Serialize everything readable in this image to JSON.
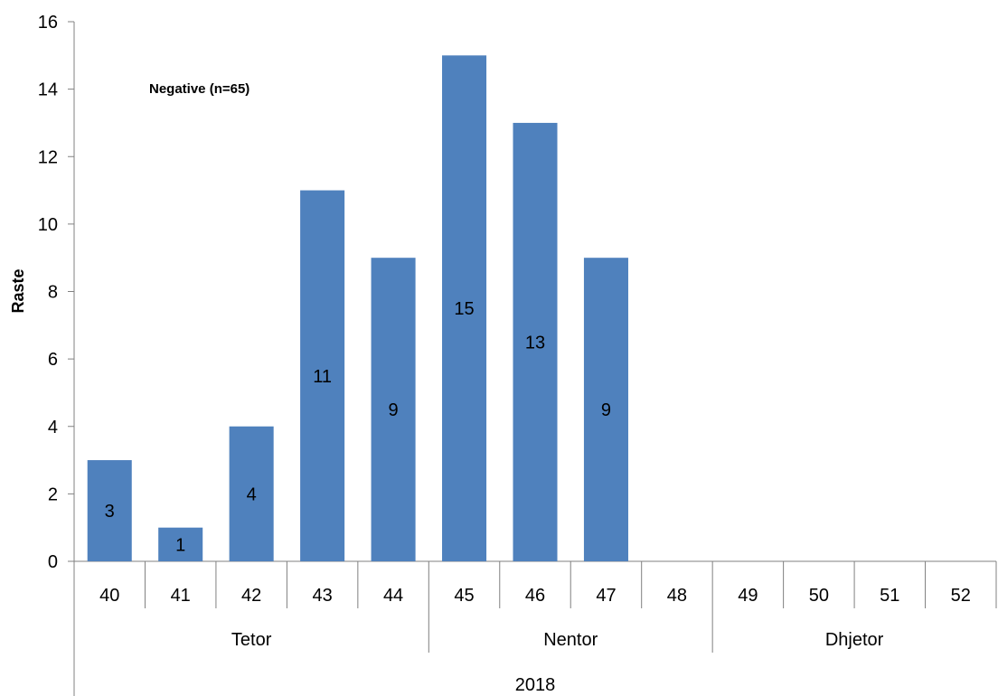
{
  "chart_data": {
    "type": "bar",
    "categories": [
      "40",
      "41",
      "42",
      "43",
      "44",
      "45",
      "46",
      "47",
      "48",
      "49",
      "50",
      "51",
      "52"
    ],
    "values": [
      3,
      1,
      4,
      11,
      9,
      15,
      13,
      9,
      0,
      0,
      0,
      0,
      0
    ],
    "data_labels": [
      "3",
      "1",
      "4",
      "11",
      "9",
      "15",
      "13",
      "9",
      "",
      "",
      "",
      "",
      ""
    ],
    "month_groups": [
      {
        "label": "Tetor",
        "categories": [
          "40",
          "41",
          "42",
          "43",
          "44"
        ]
      },
      {
        "label": "Nentor",
        "categories": [
          "45",
          "46",
          "47",
          "48"
        ]
      },
      {
        "label": "Dhjetor",
        "categories": [
          "49",
          "50",
          "51",
          "52"
        ]
      }
    ],
    "year_label": "2018",
    "title": "",
    "xlabel": "",
    "ylabel": "Raste",
    "ylim": [
      0,
      16
    ],
    "yticks": [
      0,
      2,
      4,
      6,
      8,
      10,
      12,
      14,
      16
    ],
    "annotation": "Negative (n=65)",
    "grid": false,
    "legend": "none",
    "bar_color": "#4F81BD"
  }
}
